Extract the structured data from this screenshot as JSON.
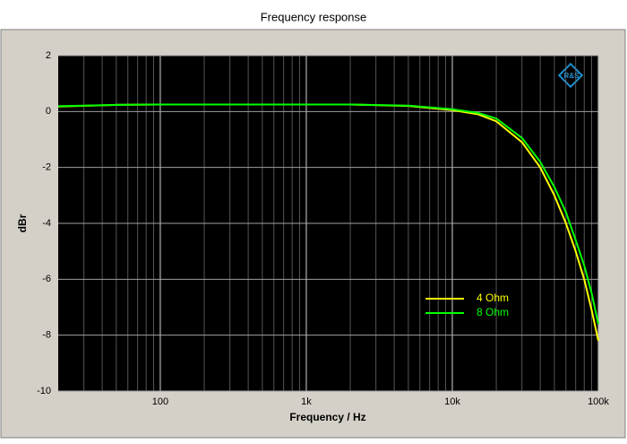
{
  "chart_data": {
    "type": "line",
    "title": "Frequency response",
    "x_label": "Frequency / Hz",
    "y_label": "dBr",
    "logo_text": "R&S",
    "x": [
      20,
      50,
      100,
      200,
      500,
      1000,
      2000,
      5000,
      10000,
      15000,
      20000,
      30000,
      40000,
      50000,
      60000,
      70000,
      80000,
      90000,
      100000
    ],
    "series": [
      {
        "name": "4 Ohm",
        "color": "#ffff00",
        "values": [
          0.18,
          0.24,
          0.25,
          0.25,
          0.25,
          0.25,
          0.25,
          0.2,
          0.05,
          -0.1,
          -0.35,
          -1.1,
          -2.0,
          -3.0,
          -4.0,
          -5.0,
          -6.0,
          -7.1,
          -8.2
        ]
      },
      {
        "name": "8 Ohm",
        "color": "#00ff00",
        "values": [
          0.19,
          0.24,
          0.25,
          0.25,
          0.25,
          0.25,
          0.25,
          0.21,
          0.08,
          -0.05,
          -0.25,
          -0.95,
          -1.8,
          -2.7,
          -3.6,
          -4.6,
          -5.5,
          -6.5,
          -7.6
        ]
      }
    ],
    "xlim": [
      20,
      100000
    ],
    "x_log": true,
    "xticks": [
      100,
      {
        "value": 1000,
        "label": "1k"
      },
      {
        "value": 10000,
        "label": "10k"
      },
      {
        "value": 100000,
        "label": "100k"
      }
    ],
    "ylim": [
      -10,
      2
    ],
    "yticks": [
      2,
      0,
      -2,
      -4,
      -6,
      -8,
      -10
    ],
    "grid": true
  }
}
